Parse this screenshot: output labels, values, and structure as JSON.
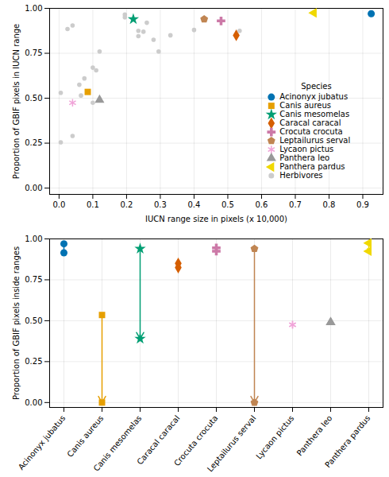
{
  "chart_data": [
    {
      "type": "scatter",
      "x_label": "IUCN range size in pixels (x 10,000)",
      "y_label": "Proportion of GBIF pixels in IUCN range",
      "xlim": [
        -0.028,
        0.96
      ],
      "xticks": [
        {
          "value": 0,
          "label": "0.0"
        },
        0.1,
        0.2,
        0.3,
        0.4,
        0.5,
        0.6,
        0.7,
        0.8,
        0.9
      ],
      "ylim": [
        -0.035,
        1.0
      ],
      "yticks": [
        {
          "value": 0,
          "label": "0.00"
        },
        0.25,
        {
          "value": 0.5,
          "label": "0.50"
        },
        0.75,
        {
          "value": 1,
          "label": "1.00"
        }
      ],
      "grid": true,
      "legend": "right",
      "legend_title": "Species",
      "series": [
        {
          "name": "Acinonyx jubatus",
          "color": "#0072b2",
          "marker": "circle",
          "x": [
            0.925
          ],
          "y": [
            0.97
          ]
        },
        {
          "name": "Canis aureus",
          "color": "#e69f00",
          "marker": "square",
          "x": [
            0.085
          ],
          "y": [
            0.535
          ]
        },
        {
          "name": "Canis mesomelas",
          "color": "#009e73",
          "marker": "star",
          "x": [
            0.22
          ],
          "y": [
            0.94
          ]
        },
        {
          "name": "Caracal caracal",
          "color": "#d55e00",
          "marker": "diamond",
          "x": [
            0.525
          ],
          "y": [
            0.85
          ]
        },
        {
          "name": "Crocuta crocuta",
          "color": "#cc79a7",
          "marker": "cross",
          "x": [
            0.48
          ],
          "y": [
            0.93
          ]
        },
        {
          "name": "Leptailurus serval",
          "color": "#c08552",
          "marker": "pentagon",
          "x": [
            0.43
          ],
          "y": [
            0.94
          ]
        },
        {
          "name": "Lycaon pictus",
          "color": "#f0a3d8",
          "marker": "asterisk",
          "x": [
            0.04
          ],
          "y": [
            0.475
          ]
        },
        {
          "name": "Panthera leo",
          "color": "#999999",
          "marker": "triangle",
          "x": [
            0.12
          ],
          "y": [
            0.49
          ]
        },
        {
          "name": "Panthera pardus",
          "color": "#f0d800",
          "marker": "triangle-left",
          "x": [
            0.755
          ],
          "y": [
            0.975
          ]
        },
        {
          "name": "Herbivores",
          "color": "#cccccc",
          "marker": "circle",
          "x": [
            0.005,
            0.005,
            0.025,
            0.04,
            0.04,
            0.06,
            0.065,
            0.075,
            0.1,
            0.1,
            0.11,
            0.12,
            0.195,
            0.195,
            0.235,
            0.235,
            0.25,
            0.26,
            0.28,
            0.295,
            0.33,
            0.4,
            0.535
          ],
          "y": [
            0.53,
            0.255,
            0.885,
            0.905,
            0.29,
            0.575,
            0.515,
            0.61,
            0.475,
            0.67,
            0.655,
            0.76,
            0.95,
            0.965,
            0.845,
            0.875,
            0.87,
            0.92,
            0.825,
            0.76,
            0.85,
            0.88,
            0.875
          ]
        }
      ]
    },
    {
      "type": "arrow",
      "y_label": "Proportion of GBIF pixels inside ranges",
      "ylim": [
        -0.03,
        1.0
      ],
      "yticks": [
        {
          "value": 0,
          "label": "0.00"
        },
        0.25,
        {
          "value": 0.5,
          "label": "0.50"
        },
        0.75,
        {
          "value": 1,
          "label": "1.00"
        }
      ],
      "grid": true,
      "series": [
        {
          "name": "Acinonyx jubatus",
          "color": "#0072b2",
          "marker": "circle",
          "values": [
            0.97,
            0.915
          ]
        },
        {
          "name": "Canis aureus",
          "color": "#e69f00",
          "marker": "square",
          "values": [
            0.535,
            0.0
          ]
        },
        {
          "name": "Canis mesomelas",
          "color": "#009e73",
          "marker": "star",
          "values": [
            0.94,
            0.39
          ]
        },
        {
          "name": "Caracal caracal",
          "color": "#d55e00",
          "marker": "diamond",
          "values": [
            0.85,
            0.825
          ]
        },
        {
          "name": "Crocuta crocuta",
          "color": "#cc79a7",
          "marker": "cross",
          "values": [
            0.945,
            0.925
          ]
        },
        {
          "name": "Leptailurus serval",
          "color": "#c08552",
          "marker": "pentagon",
          "values": [
            0.94,
            0.0
          ]
        },
        {
          "name": "Lycaon pictus",
          "color": "#f0a3d8",
          "marker": "asterisk",
          "values": [
            0.475,
            0.475
          ]
        },
        {
          "name": "Panthera leo",
          "color": "#999999",
          "marker": "triangle",
          "values": [
            0.49,
            0.49
          ]
        },
        {
          "name": "Panthera pardus",
          "color": "#f0d800",
          "marker": "triangle-left",
          "values": [
            0.975,
            0.925
          ]
        }
      ]
    }
  ]
}
